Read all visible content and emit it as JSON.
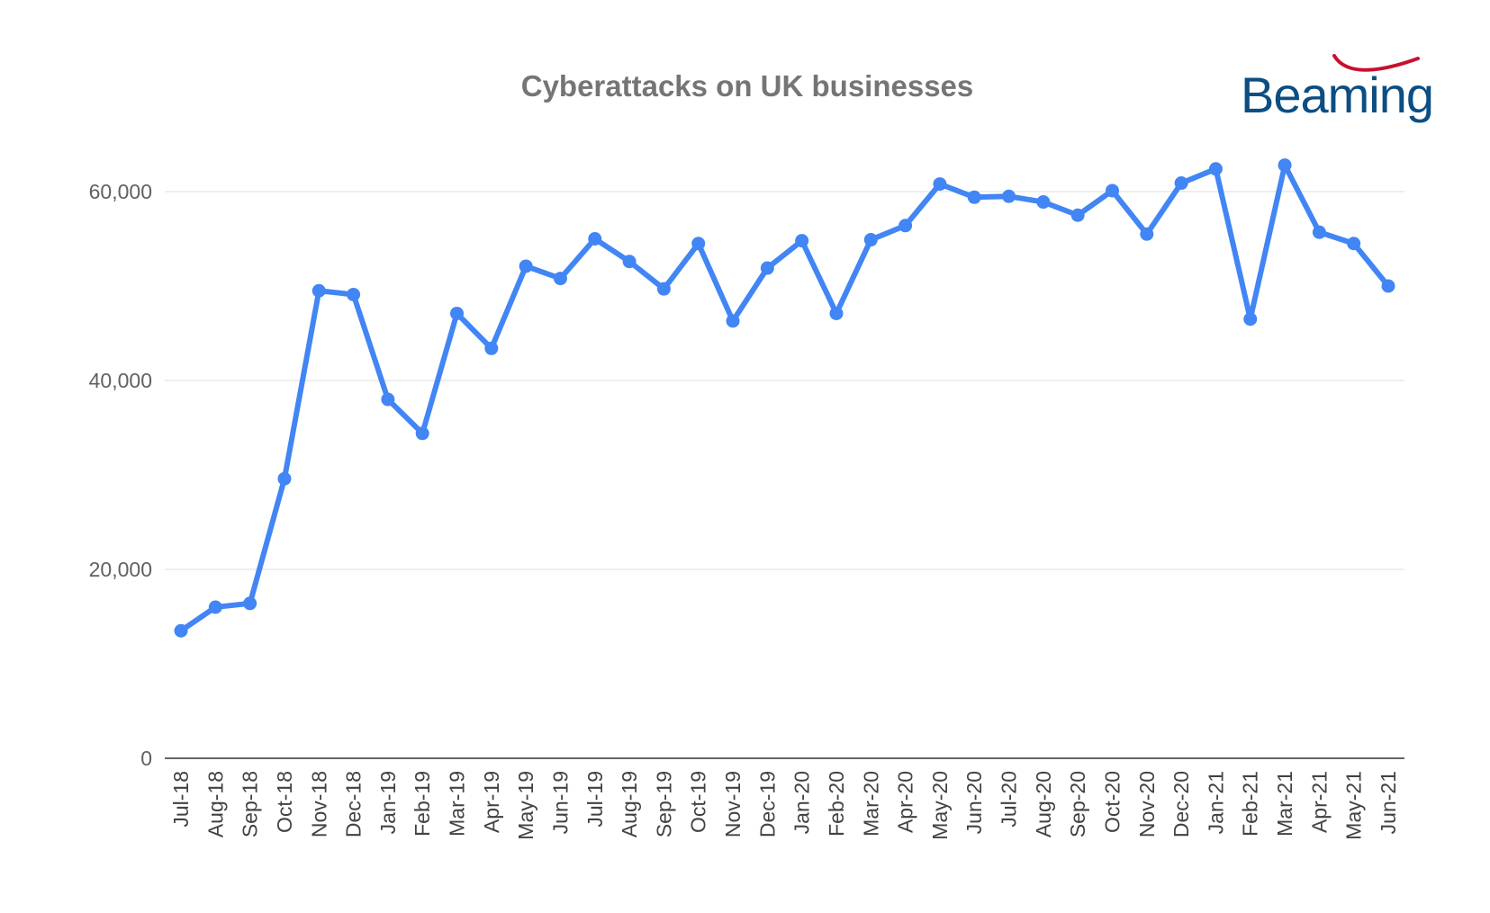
{
  "logo": {
    "text": "Beaming",
    "text_color": "#0c4e82",
    "swoosh_color": "#c8102e"
  },
  "chart_data": {
    "type": "line",
    "title": "Cyberattacks on UK businesses",
    "xlabel": "",
    "ylabel": "",
    "ylim": [
      0,
      60000
    ],
    "yticks": [
      0,
      20000,
      40000,
      60000
    ],
    "ytick_labels": [
      "0",
      "20,000",
      "40,000",
      "60,000"
    ],
    "grid": true,
    "legend": "none",
    "line_color": "#4285f4",
    "categories": [
      "Jul-18",
      "Aug-18",
      "Sep-18",
      "Oct-18",
      "Nov-18",
      "Dec-18",
      "Jan-19",
      "Feb-19",
      "Mar-19",
      "Apr-19",
      "May-19",
      "Jun-19",
      "Jul-19",
      "Aug-19",
      "Sep-19",
      "Oct-19",
      "Nov-19",
      "Dec-19",
      "Jan-20",
      "Feb-20",
      "Mar-20",
      "Apr-20",
      "May-20",
      "Jun-20",
      "Jul-20",
      "Aug-20",
      "Sep-20",
      "Oct-20",
      "Nov-20",
      "Dec-20",
      "Jan-21",
      "Feb-21",
      "Mar-21",
      "Apr-21",
      "May-21",
      "Jun-21"
    ],
    "series": [
      {
        "values": [
          13500,
          16000,
          16400,
          29600,
          49500,
          49100,
          38000,
          34400,
          47100,
          43400,
          52100,
          50800,
          55000,
          52600,
          49700,
          54500,
          46300,
          51900,
          54800,
          47100,
          54900,
          56400,
          60800,
          59400,
          59500,
          58900,
          57500,
          60100,
          55500,
          60900,
          62400,
          46500,
          62800,
          55700,
          54500,
          50000
        ]
      }
    ]
  }
}
